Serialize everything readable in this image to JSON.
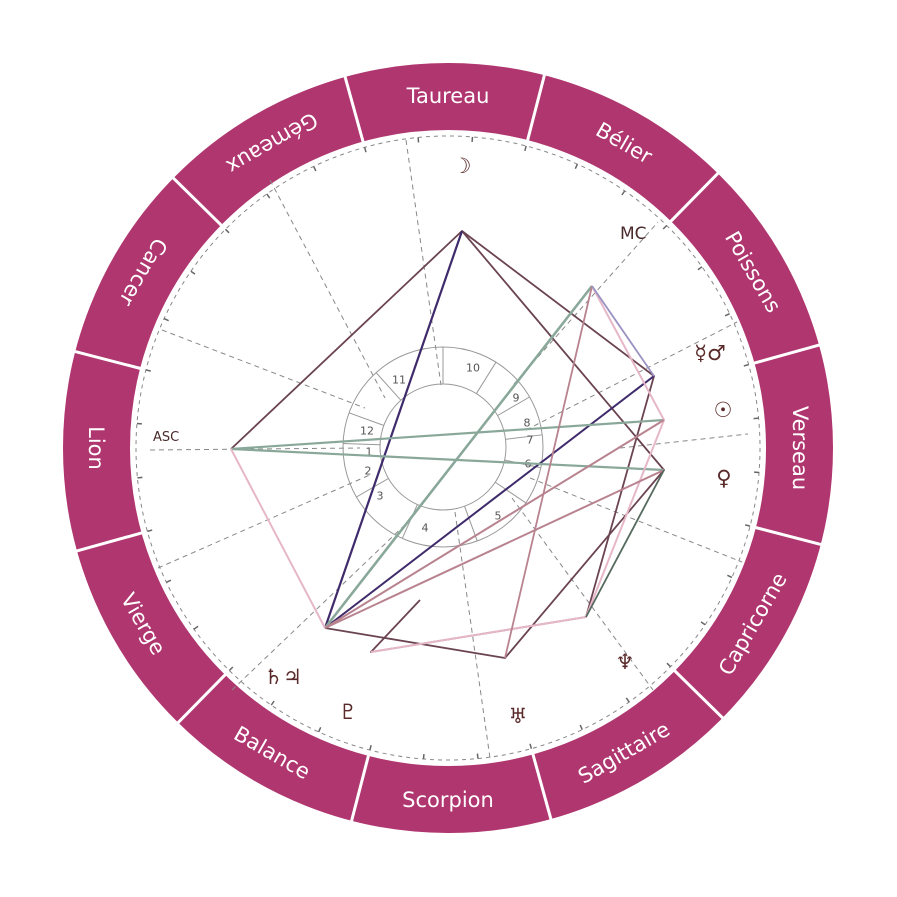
{
  "colors": {
    "ring": "#b0366f",
    "ring_divider": "#ffffff",
    "sign_text": "#ffffff",
    "guide": "#888888",
    "house_circle": "#999999",
    "glyph": "#5a2a2a"
  },
  "signs": [
    "Taureau",
    "Bélier",
    "Poissons",
    "Verseau",
    "Capricorne",
    "Sagittaire",
    "Scorpion",
    "Balance",
    "Vierge",
    "Lion",
    "Cancer",
    "Gémeaux"
  ],
  "angles": {
    "asc": "ASC",
    "mc": "MC"
  },
  "houses": [
    "1",
    "2",
    "3",
    "4",
    "5",
    "6",
    "7",
    "8",
    "9",
    "10",
    "11",
    "12"
  ],
  "planets": [
    {
      "name": "moon",
      "glyph": "☽"
    },
    {
      "name": "mercury-mars",
      "glyph": "☿♂"
    },
    {
      "name": "sun",
      "glyph": "☉"
    },
    {
      "name": "venus",
      "glyph": "♀"
    },
    {
      "name": "neptune",
      "glyph": "♆"
    },
    {
      "name": "uranus",
      "glyph": "♅"
    },
    {
      "name": "pluto",
      "glyph": "♇"
    },
    {
      "name": "saturn-jupiter",
      "glyph": "♄♃"
    }
  ]
}
